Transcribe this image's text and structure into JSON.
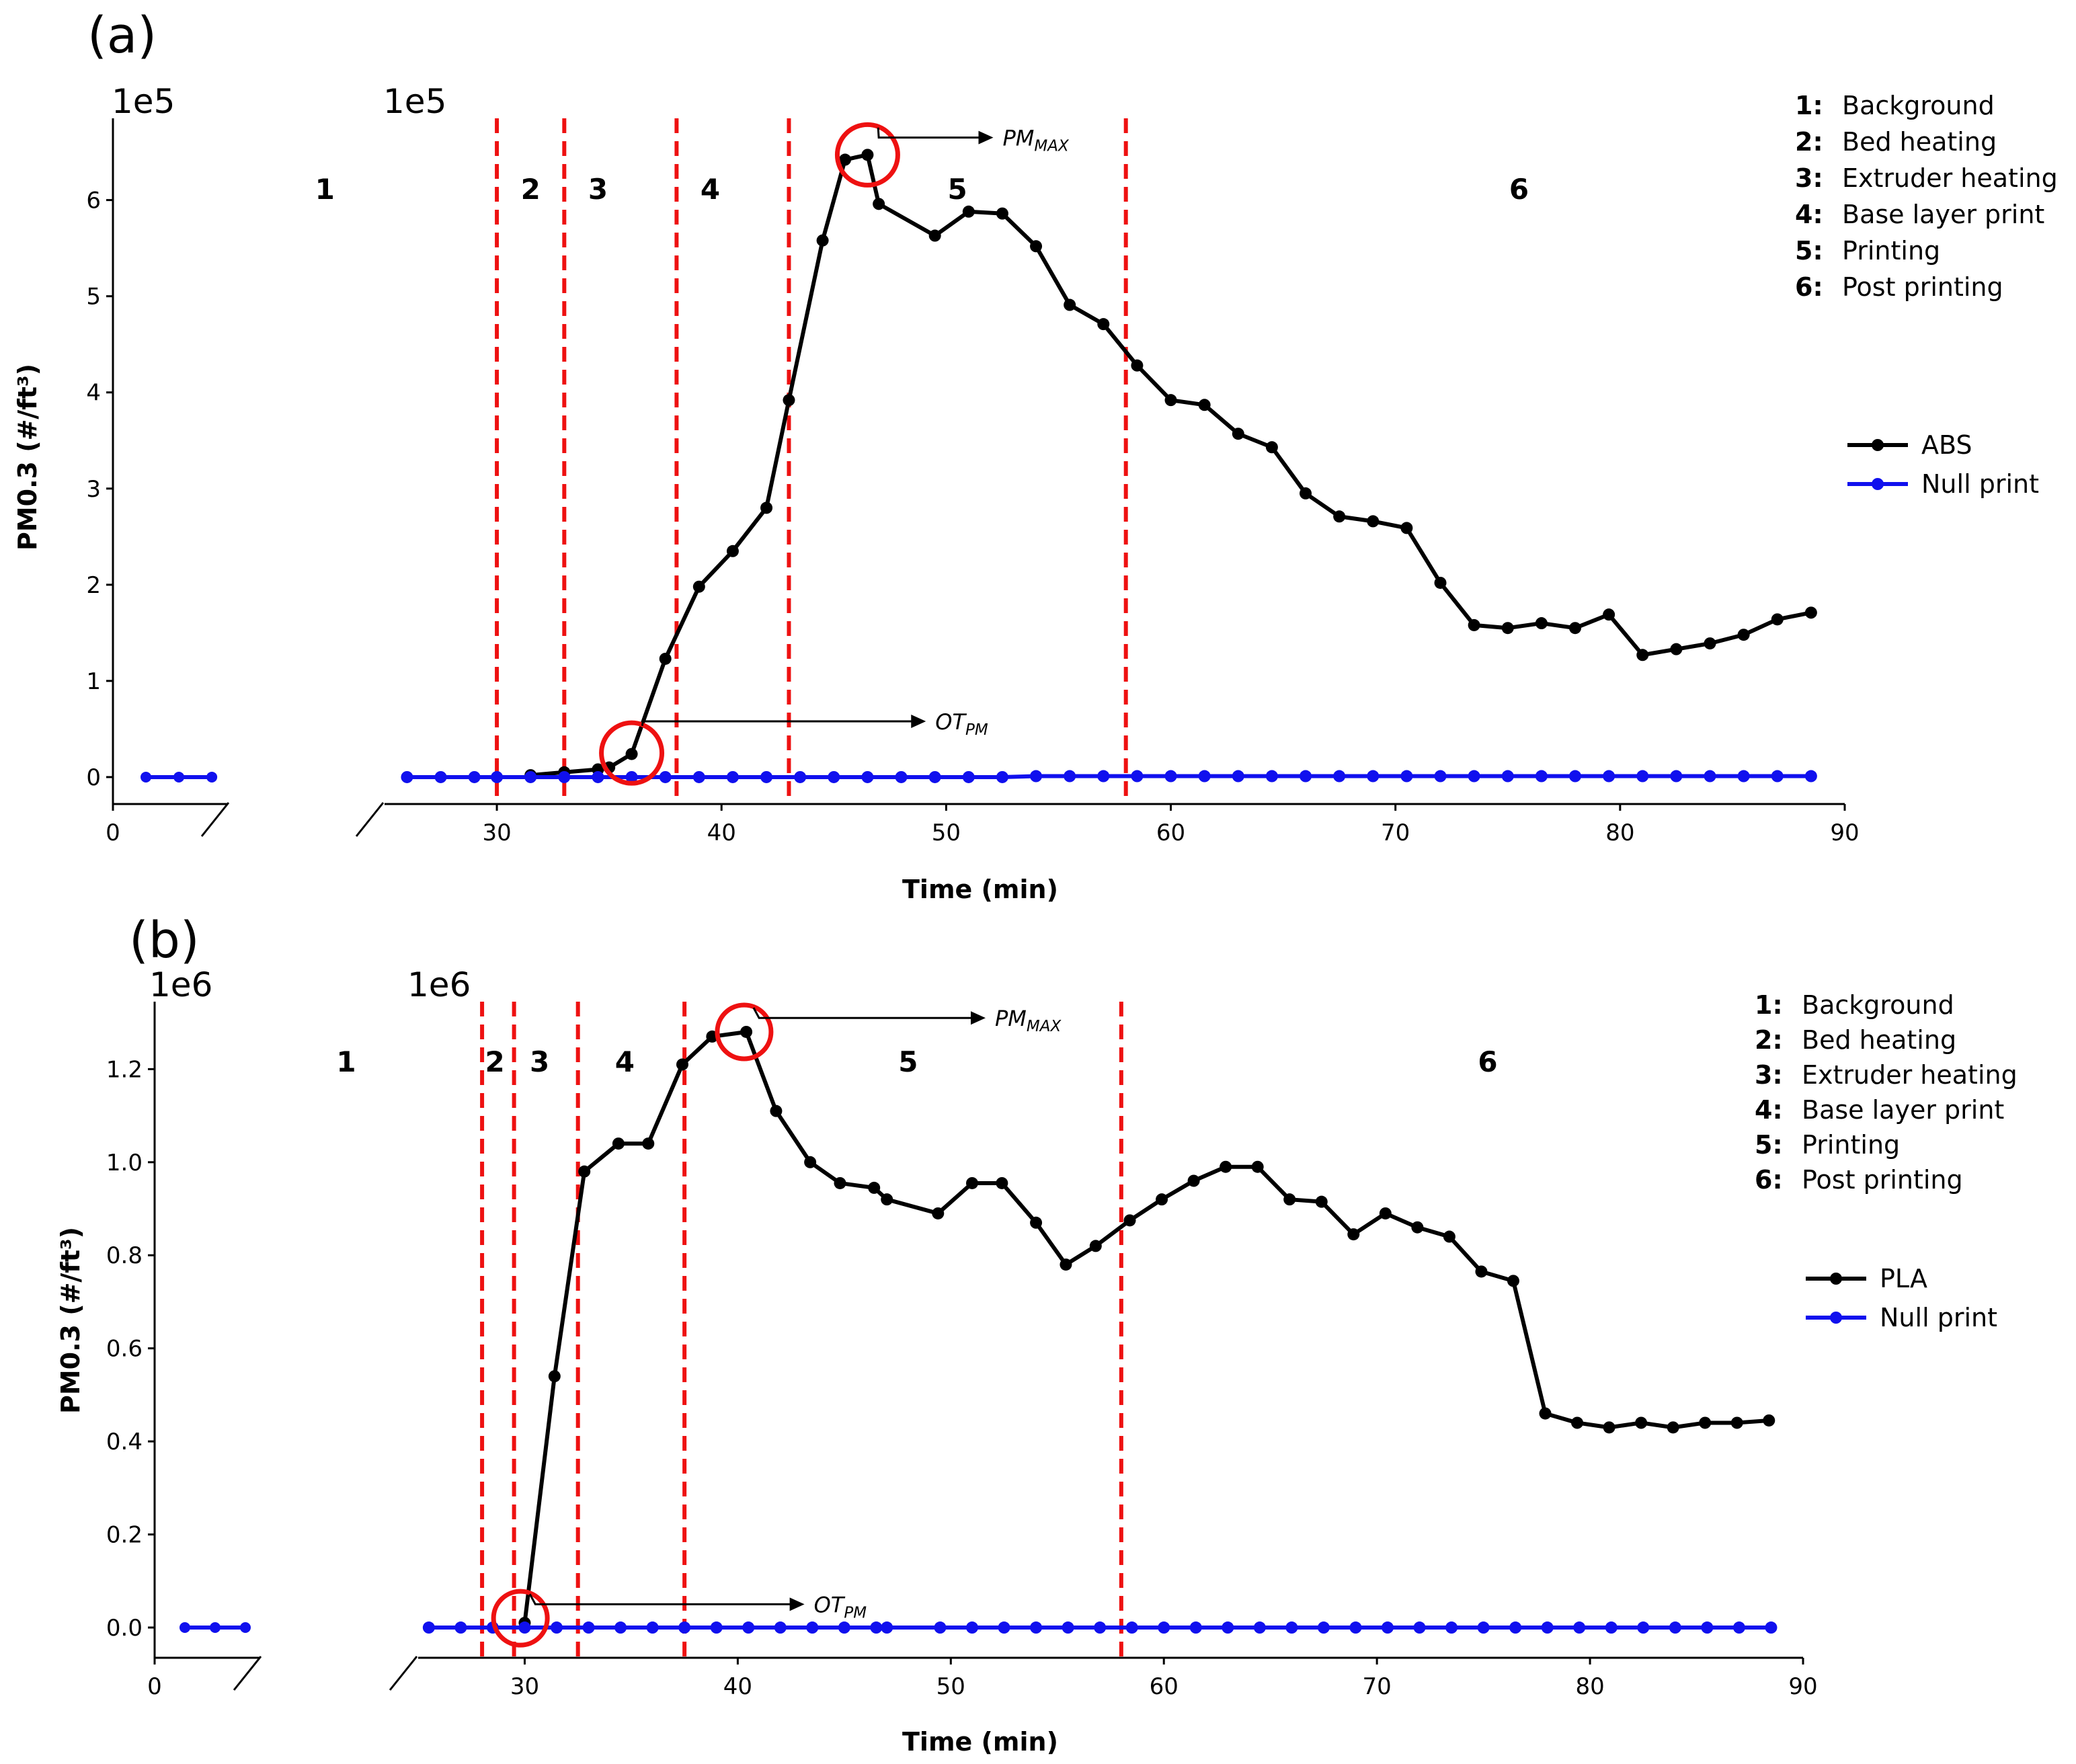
{
  "chart_data": [
    {
      "type": "line",
      "panel_label": "(a)",
      "xlabel": "Time (min)",
      "ylabel": "PM0.3 (#/ft³)",
      "y_multiplier": "1e5",
      "xlim_left": [
        0,
        5.2
      ],
      "xlim_right": [
        25,
        90
      ],
      "ylim": [
        -0.28,
        6.85
      ],
      "x_ticks_left": [
        0
      ],
      "x_ticks_right": [
        30,
        40,
        50,
        60,
        70,
        80,
        90
      ],
      "y_ticks": [
        0,
        1,
        2,
        3,
        4,
        5,
        6
      ],
      "y_tick_labels": [
        "0",
        "1",
        "2",
        "3",
        "4",
        "5",
        "6"
      ],
      "phase_boundaries": [
        30,
        33,
        38,
        43,
        58
      ],
      "phase_labels": [
        {
          "text": "1",
          "x": 7.5
        },
        {
          "text": "2",
          "x": 31.5
        },
        {
          "text": "3",
          "x": 34.5
        },
        {
          "text": "4",
          "x": 39.5
        },
        {
          "text": "5",
          "x": 50.5
        },
        {
          "text": "6",
          "x": 75.5
        }
      ],
      "phase_legend": [
        {
          "key": "1:",
          "text": "Background"
        },
        {
          "key": "2:",
          "text": "Bed heating"
        },
        {
          "key": "3:",
          "text": "Extruder heating"
        },
        {
          "key": "4:",
          "text": "Base layer print"
        },
        {
          "key": "5:",
          "text": "Printing"
        },
        {
          "key": "6:",
          "text": "Post printing"
        }
      ],
      "annotations": [
        {
          "main": "PM",
          "sub": "MAX",
          "circle": [
            46.5,
            6.47
          ],
          "elbow": [
            47,
            6.65
          ],
          "end": [
            51.5,
            6.65
          ]
        },
        {
          "main": "OT",
          "sub": "PM",
          "circle": [
            36,
            0.25
          ],
          "elbow": [
            36.5,
            0.58
          ],
          "end": [
            48.5,
            0.58
          ]
        }
      ],
      "series": [
        {
          "name": "ABS",
          "color": "#000000",
          "x": [
            31.5,
            33,
            34.5,
            35,
            36,
            37.5,
            39,
            40.5,
            42,
            43,
            44.5,
            45.5,
            46.5,
            47,
            49.5,
            51,
            52.5,
            54,
            55.5,
            57,
            58.5,
            60,
            61.5,
            63,
            64.5,
            66,
            67.5,
            69,
            70.5,
            72,
            73.5,
            75,
            76.5,
            78,
            79.5,
            81,
            82.5,
            84,
            85.5,
            87,
            88.5
          ],
          "y": [
            0.02,
            0.05,
            0.08,
            0.1,
            0.24,
            1.23,
            1.98,
            2.35,
            2.8,
            3.92,
            5.58,
            6.42,
            6.47,
            5.96,
            5.63,
            5.88,
            5.86,
            5.52,
            4.91,
            4.71,
            4.28,
            3.92,
            3.87,
            3.57,
            3.43,
            2.95,
            2.71,
            2.66,
            2.59,
            2.02,
            1.58,
            1.55,
            1.6,
            1.55,
            1.69,
            1.27,
            1.33,
            1.39,
            1.48,
            1.64,
            1.71
          ]
        },
        {
          "name": "Null print",
          "color": "#1010ee",
          "x_left": [
            1.5,
            3,
            4.5
          ],
          "y_left": [
            0,
            0,
            0
          ],
          "x": [
            26,
            27.5,
            29,
            30,
            31.5,
            33,
            34.5,
            36,
            37.5,
            39,
            40.5,
            42,
            43.5,
            45,
            46.5,
            48,
            49.5,
            51,
            52.5,
            54,
            55.5,
            57,
            58.5,
            60,
            61.5,
            63,
            64.5,
            66,
            67.5,
            69,
            70.5,
            72,
            73.5,
            75,
            76.5,
            78,
            79.5,
            81,
            82.5,
            84,
            85.5,
            87,
            88.5
          ],
          "y": [
            0,
            0,
            0,
            0,
            0,
            0,
            0,
            0,
            0,
            0,
            0,
            0,
            0,
            0,
            0,
            0,
            0,
            0,
            0,
            0.01,
            0.01,
            0.01,
            0.01,
            0.01,
            0.01,
            0.01,
            0.01,
            0.01,
            0.01,
            0.01,
            0.01,
            0.01,
            0.01,
            0.01,
            0.01,
            0.01,
            0.01,
            0.01,
            0.01,
            0.01,
            0.01,
            0.01,
            0.01
          ]
        }
      ]
    },
    {
      "type": "line",
      "panel_label": "(b)",
      "xlabel": "Time (min)",
      "ylabel": "PM0.3 (#/ft³)",
      "y_multiplier": "1e6",
      "xlim_left": [
        0,
        5.2
      ],
      "xlim_right": [
        25,
        90
      ],
      "ylim": [
        -0.065,
        1.345
      ],
      "x_ticks_left": [
        0
      ],
      "x_ticks_right": [
        30,
        40,
        50,
        60,
        70,
        80,
        90
      ],
      "y_ticks": [
        0,
        0.2,
        0.4,
        0.6,
        0.8,
        1.0,
        1.2
      ],
      "y_tick_labels": [
        "0.0",
        "0.2",
        "0.4",
        "0.6",
        "0.8",
        "1.0",
        "1.2"
      ],
      "phase_boundaries": [
        28,
        29.5,
        32.5,
        37.5,
        58
      ],
      "phase_labels": [
        {
          "text": "1",
          "x": 7.5
        },
        {
          "text": "2",
          "x": 28.6
        },
        {
          "text": "3",
          "x": 30.7
        },
        {
          "text": "4",
          "x": 34.7
        },
        {
          "text": "5",
          "x": 48
        },
        {
          "text": "6",
          "x": 75.2
        }
      ],
      "phase_legend": [
        {
          "key": "1:",
          "text": "Background"
        },
        {
          "key": "2:",
          "text": "Bed heating"
        },
        {
          "key": "3:",
          "text": "Extruder heating"
        },
        {
          "key": "4:",
          "text": "Base layer print"
        },
        {
          "key": "5:",
          "text": "Printing"
        },
        {
          "key": "6:",
          "text": "Post printing"
        }
      ],
      "annotations": [
        {
          "main": "PM",
          "sub": "MAX",
          "circle": [
            40.3,
            1.28
          ],
          "elbow": [
            41,
            1.31
          ],
          "end": [
            51,
            1.31
          ]
        },
        {
          "main": "OT",
          "sub": "PM",
          "circle": [
            29.8,
            0.02
          ],
          "elbow": [
            30.5,
            0.05
          ],
          "end": [
            42.5,
            0.05
          ]
        }
      ],
      "series": [
        {
          "name": "PLA",
          "color": "#000000",
          "x": [
            30,
            31.4,
            32.8,
            34.4,
            35.8,
            37.4,
            38.8,
            40.4,
            41.8,
            43.4,
            44.8,
            46.4,
            47,
            49.4,
            51,
            52.4,
            54,
            55.4,
            56.8,
            58.4,
            59.9,
            61.4,
            62.9,
            64.4,
            65.9,
            67.4,
            68.9,
            70.4,
            71.9,
            73.4,
            74.9,
            76.4,
            77.9,
            79.4,
            80.9,
            82.4,
            83.9,
            85.4,
            86.9,
            88.4
          ],
          "y": [
            0.01,
            0.54,
            0.98,
            1.04,
            1.04,
            1.21,
            1.27,
            1.28,
            1.11,
            1.0,
            0.955,
            0.945,
            0.92,
            0.89,
            0.955,
            0.955,
            0.87,
            0.78,
            0.82,
            0.875,
            0.92,
            0.96,
            0.99,
            0.99,
            0.92,
            0.915,
            0.845,
            0.89,
            0.86,
            0.84,
            0.765,
            0.745,
            0.46,
            0.44,
            0.43,
            0.44,
            0.43,
            0.44,
            0.44,
            0.445
          ]
        },
        {
          "name": "Null print",
          "color": "#1010ee",
          "x_left": [
            1.5,
            3,
            4.5
          ],
          "y_left": [
            0,
            0,
            0
          ],
          "x": [
            25.5,
            27,
            28.5,
            30,
            31.5,
            33,
            34.5,
            36,
            37.5,
            39,
            40.5,
            42,
            43.5,
            45,
            46.5,
            47,
            49.5,
            51,
            52.5,
            54,
            55.5,
            57,
            58.5,
            60,
            61.5,
            63,
            64.5,
            66,
            67.5,
            69,
            70.5,
            72,
            73.5,
            75,
            76.5,
            78,
            79.5,
            81,
            82.5,
            84,
            85.5,
            87,
            88.5
          ],
          "y": [
            0,
            0,
            0,
            0,
            0,
            0,
            0,
            0,
            0,
            0,
            0,
            0,
            0,
            0,
            0,
            0,
            0,
            0,
            0,
            0,
            0,
            0,
            0,
            0,
            0,
            0,
            0,
            0,
            0,
            0,
            0,
            0,
            0,
            0,
            0,
            0,
            0,
            0,
            0,
            0,
            0,
            0,
            0
          ]
        }
      ]
    }
  ]
}
